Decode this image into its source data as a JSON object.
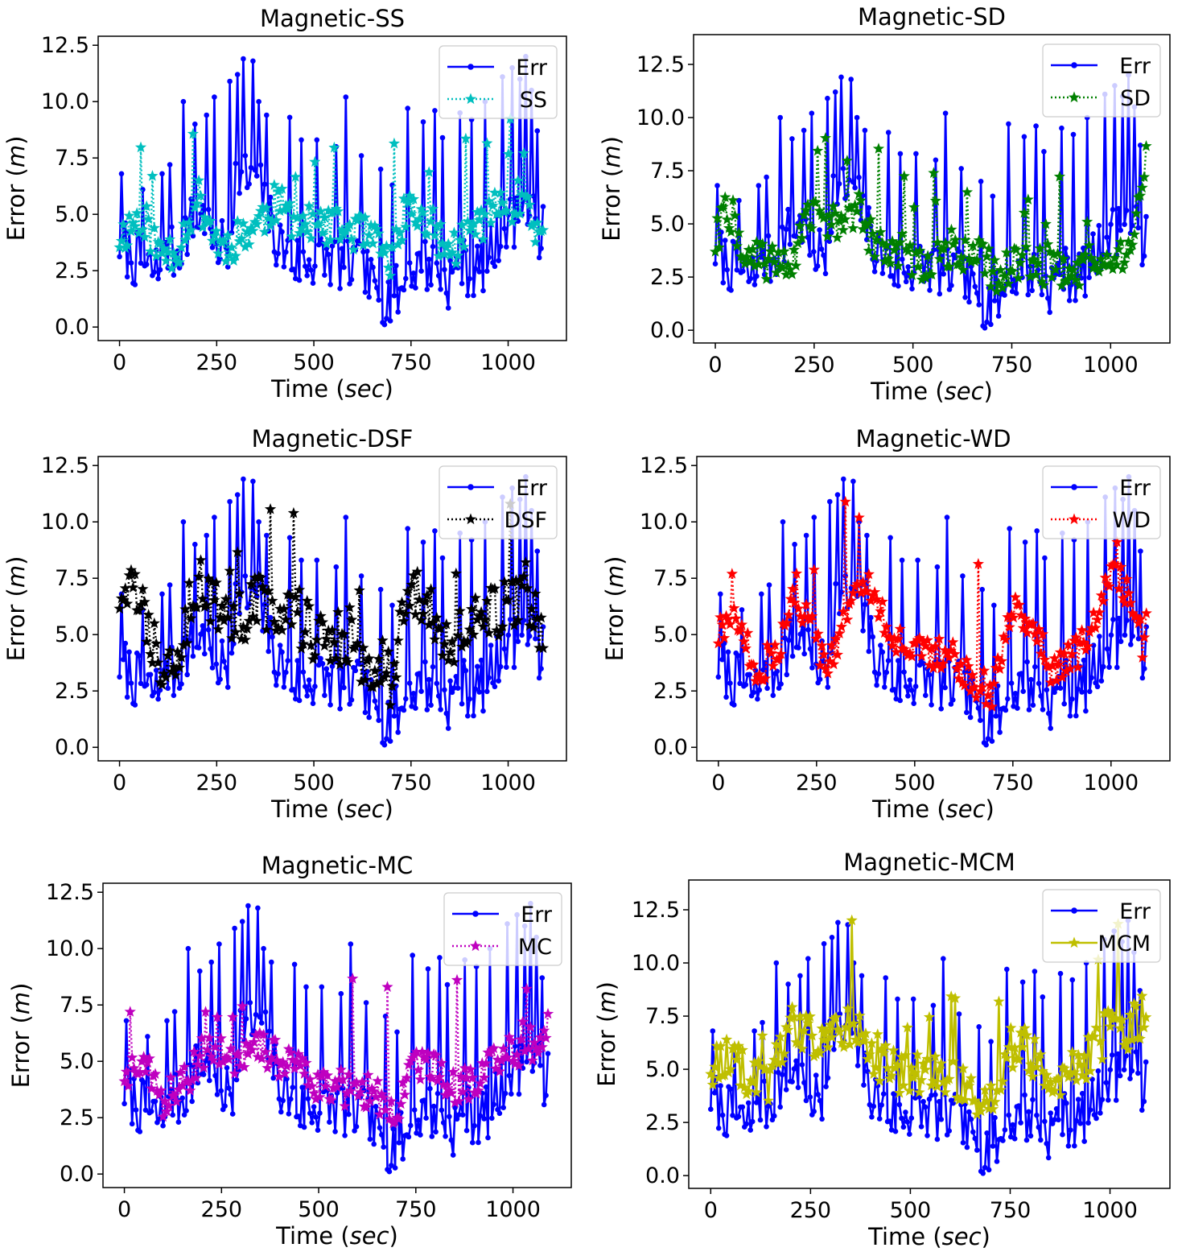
{
  "chart_data": [
    {
      "type": "line",
      "title": "Magnetic-SS",
      "xlabel": "Time (sec)",
      "ylabel": "Error (m)",
      "xlim": [
        -55,
        1150
      ],
      "ylim": [
        -0.6,
        12.9
      ],
      "xticks": [
        0,
        250,
        500,
        750,
        1000
      ],
      "yticks": [
        0.0,
        2.5,
        5.0,
        7.5,
        10.0,
        12.5
      ],
      "ytick_labels": [
        "0.0",
        "2.5",
        "5.0",
        "7.5",
        "10.0",
        "12.5"
      ],
      "legend": "top-right",
      "series": [
        {
          "name": "Err",
          "color": "#0000ff",
          "marker": "dot",
          "style": "solid"
        },
        {
          "name": "SS",
          "color": "#00bfbf",
          "marker": "star",
          "style": "dotted",
          "profile": [
            [
              0,
              4.0
            ],
            [
              60,
              5.0
            ],
            [
              100,
              3.3
            ],
            [
              150,
              3.5
            ],
            [
              200,
              5.8
            ],
            [
              260,
              3.5
            ],
            [
              300,
              3.9
            ],
            [
              350,
              4.5
            ],
            [
              400,
              5.5
            ],
            [
              450,
              4.8
            ],
            [
              500,
              4.4
            ],
            [
              600,
              4.3
            ],
            [
              650,
              3.8
            ],
            [
              700,
              2.9
            ],
            [
              750,
              5.3
            ],
            [
              800,
              4.5
            ],
            [
              850,
              3.3
            ],
            [
              900,
              4.2
            ],
            [
              950,
              5.0
            ],
            [
              1000,
              5.5
            ],
            [
              1050,
              5.7
            ],
            [
              1090,
              3.5
            ]
          ],
          "noise": 0.9,
          "seed": 11
        }
      ]
    },
    {
      "type": "line",
      "title": "Magnetic-SD",
      "xlabel": "Time (sec)",
      "ylabel": "Error (m)",
      "xlim": [
        -55,
        1150
      ],
      "ylim": [
        -0.6,
        13.9
      ],
      "xticks": [
        0,
        250,
        500,
        750,
        1000
      ],
      "yticks": [
        0.0,
        2.5,
        5.0,
        7.5,
        10.0,
        12.5
      ],
      "ytick_labels": [
        "0.0",
        "2.5",
        "5.0",
        "7.5",
        "10.0",
        "12.5"
      ],
      "legend": "top-right",
      "series": [
        {
          "name": "Err",
          "color": "#0000ff",
          "marker": "dot",
          "style": "solid"
        },
        {
          "name": "SD",
          "color": "#008000",
          "marker": "star",
          "style": "dotted",
          "profile": [
            [
              0,
              4.2
            ],
            [
              30,
              6.0
            ],
            [
              80,
              3.3
            ],
            [
              200,
              3.5
            ],
            [
              260,
              6.0
            ],
            [
              300,
              4.8
            ],
            [
              350,
              5.8
            ],
            [
              400,
              4.3
            ],
            [
              450,
              4.0
            ],
            [
              500,
              3.4
            ],
            [
              600,
              3.2
            ],
            [
              650,
              3.8
            ],
            [
              700,
              2.7
            ],
            [
              800,
              3.0
            ],
            [
              850,
              3.1
            ],
            [
              900,
              3.0
            ],
            [
              1000,
              3.0
            ],
            [
              1050,
              3.4
            ],
            [
              1080,
              7.0
            ],
            [
              1090,
              9.0
            ]
          ],
          "noise": 1.0,
          "seed": 22
        }
      ]
    },
    {
      "type": "line",
      "title": "Magnetic-DSF",
      "xlabel": "Time (sec)",
      "ylabel": "Error (m)",
      "xlim": [
        -55,
        1150
      ],
      "ylim": [
        -0.6,
        12.9
      ],
      "xticks": [
        0,
        250,
        500,
        750,
        1000
      ],
      "yticks": [
        0.0,
        2.5,
        5.0,
        7.5,
        10.0,
        12.5
      ],
      "ytick_labels": [
        "0.0",
        "2.5",
        "5.0",
        "7.5",
        "10.0",
        "12.5"
      ],
      "legend": "top-right",
      "series": [
        {
          "name": "Err",
          "color": "#0000ff",
          "marker": "dot",
          "style": "solid"
        },
        {
          "name": "DSF",
          "color": "#000000",
          "marker": "star",
          "style": "dotted",
          "profile": [
            [
              0,
              6.8
            ],
            [
              40,
              7.0
            ],
            [
              100,
              4.0
            ],
            [
              150,
              4.2
            ],
            [
              200,
              7.5
            ],
            [
              260,
              6.0
            ],
            [
              300,
              5.5
            ],
            [
              350,
              6.5
            ],
            [
              400,
              6.3
            ],
            [
              450,
              6.0
            ],
            [
              500,
              5.0
            ],
            [
              600,
              4.7
            ],
            [
              650,
              3.5
            ],
            [
              700,
              3.0
            ],
            [
              750,
              7.0
            ],
            [
              800,
              6.0
            ],
            [
              850,
              4.5
            ],
            [
              900,
              5.3
            ],
            [
              950,
              6.0
            ],
            [
              1000,
              6.3
            ],
            [
              1050,
              7.0
            ],
            [
              1090,
              4.5
            ]
          ],
          "noise": 1.3,
          "seed": 33
        }
      ]
    },
    {
      "type": "line",
      "title": "Magnetic-WD",
      "xlabel": "Time (sec)",
      "ylabel": "Error (m)",
      "xlim": [
        -55,
        1150
      ],
      "ylim": [
        -0.6,
        12.9
      ],
      "xticks": [
        0,
        250,
        500,
        750,
        1000
      ],
      "yticks": [
        0.0,
        2.5,
        5.0,
        7.5,
        10.0,
        12.5
      ],
      "ytick_labels": [
        "0.0",
        "2.5",
        "5.0",
        "7.5",
        "10.0",
        "12.5"
      ],
      "legend": "top-right",
      "series": [
        {
          "name": "Err",
          "color": "#0000ff",
          "marker": "dot",
          "style": "solid"
        },
        {
          "name": "WD",
          "color": "#ff0000",
          "marker": "star",
          "style": "dotted",
          "profile": [
            [
              0,
              5.0
            ],
            [
              50,
              5.5
            ],
            [
              100,
              3.5
            ],
            [
              150,
              4.0
            ],
            [
              200,
              7.0
            ],
            [
              250,
              4.5
            ],
            [
              280,
              3.3
            ],
            [
              330,
              5.8
            ],
            [
              370,
              7.5
            ],
            [
              400,
              6.5
            ],
            [
              450,
              4.8
            ],
            [
              500,
              4.3
            ],
            [
              600,
              4.0
            ],
            [
              650,
              3.0
            ],
            [
              700,
              2.5
            ],
            [
              750,
              6.5
            ],
            [
              800,
              5.5
            ],
            [
              850,
              3.5
            ],
            [
              900,
              4.0
            ],
            [
              950,
              5.0
            ],
            [
              1000,
              7.5
            ],
            [
              1050,
              7.0
            ],
            [
              1090,
              3.8
            ]
          ],
          "noise": 0.8,
          "seed": 44
        }
      ]
    },
    {
      "type": "line",
      "title": "Magnetic-MC",
      "xlabel": "Time (sec)",
      "ylabel": "Error (m)",
      "xlim": [
        -55,
        1150
      ],
      "ylim": [
        -0.6,
        12.9
      ],
      "xticks": [
        0,
        250,
        500,
        750,
        1000
      ],
      "yticks": [
        0.0,
        2.5,
        5.0,
        7.5,
        10.0,
        12.5
      ],
      "ytick_labels": [
        "0.0",
        "2.5",
        "5.0",
        "7.5",
        "10.0",
        "12.5"
      ],
      "legend": "top-right",
      "series": [
        {
          "name": "Err",
          "color": "#0000ff",
          "marker": "dot",
          "style": "solid"
        },
        {
          "name": "MC",
          "color": "#bf00bf",
          "marker": "star",
          "style": "dotted",
          "profile": [
            [
              0,
              4.5
            ],
            [
              50,
              5.2
            ],
            [
              100,
              3.3
            ],
            [
              150,
              3.8
            ],
            [
              200,
              5.5
            ],
            [
              250,
              5.3
            ],
            [
              300,
              4.8
            ],
            [
              350,
              5.7
            ],
            [
              400,
              5.0
            ],
            [
              450,
              4.5
            ],
            [
              500,
              4.0
            ],
            [
              600,
              3.7
            ],
            [
              650,
              3.5
            ],
            [
              700,
              2.8
            ],
            [
              750,
              5.0
            ],
            [
              800,
              4.8
            ],
            [
              850,
              3.8
            ],
            [
              900,
              4.2
            ],
            [
              950,
              5.0
            ],
            [
              1000,
              5.5
            ],
            [
              1050,
              5.8
            ],
            [
              1090,
              6.5
            ]
          ],
          "noise": 0.8,
          "seed": 55
        }
      ]
    },
    {
      "type": "line",
      "title": "Magnetic-MCM",
      "xlabel": "Time (sec)",
      "ylabel": "Error (m)",
      "xlim": [
        -55,
        1150
      ],
      "ylim": [
        -0.6,
        13.9
      ],
      "xticks": [
        0,
        250,
        500,
        750,
        1000
      ],
      "yticks": [
        0.0,
        2.5,
        5.0,
        7.5,
        10.0,
        12.5
      ],
      "ytick_labels": [
        "0.0",
        "2.5",
        "5.0",
        "7.5",
        "10.0",
        "12.5"
      ],
      "legend": "top-right",
      "series": [
        {
          "name": "Err",
          "color": "#0000ff",
          "marker": "dot",
          "style": "solid"
        },
        {
          "name": "MCM",
          "color": "#bfbf00",
          "marker": "star",
          "style": "solid",
          "profile": [
            [
              0,
              5.3
            ],
            [
              50,
              5.8
            ],
            [
              100,
              4.3
            ],
            [
              150,
              4.5
            ],
            [
              200,
              7.0
            ],
            [
              260,
              6.5
            ],
            [
              300,
              6.3
            ],
            [
              350,
              7.2
            ],
            [
              400,
              6.0
            ],
            [
              450,
              5.0
            ],
            [
              500,
              4.8
            ],
            [
              600,
              4.7
            ],
            [
              650,
              4.0
            ],
            [
              700,
              3.8
            ],
            [
              750,
              6.2
            ],
            [
              800,
              5.8
            ],
            [
              850,
              4.5
            ],
            [
              900,
              5.0
            ],
            [
              950,
              5.5
            ],
            [
              1000,
              7.0
            ],
            [
              1050,
              7.0
            ],
            [
              1090,
              7.5
            ]
          ],
          "noise": 1.1,
          "seed": 66
        }
      ]
    }
  ],
  "err_profile": [
    [
      0,
      3.8
    ],
    [
      40,
      3.0
    ],
    [
      70,
      2.5
    ],
    [
      100,
      2.5
    ],
    [
      150,
      3.5
    ],
    [
      180,
      4.5
    ],
    [
      210,
      5.0
    ],
    [
      240,
      3.8
    ],
    [
      280,
      3.5
    ],
    [
      300,
      7.0
    ],
    [
      330,
      6.5
    ],
    [
      350,
      7.0
    ],
    [
      370,
      5.5
    ],
    [
      400,
      4.0
    ],
    [
      440,
      3.0
    ],
    [
      470,
      2.8
    ],
    [
      500,
      3.0
    ],
    [
      540,
      3.0
    ],
    [
      580,
      2.8
    ],
    [
      620,
      2.5
    ],
    [
      660,
      1.6
    ],
    [
      690,
      1.3
    ],
    [
      720,
      1.5
    ],
    [
      750,
      2.5
    ],
    [
      800,
      2.8
    ],
    [
      840,
      2.0
    ],
    [
      880,
      2.7
    ],
    [
      920,
      2.5
    ],
    [
      960,
      3.5
    ],
    [
      1000,
      4.5
    ],
    [
      1040,
      5.0
    ],
    [
      1070,
      4.5
    ],
    [
      1090,
      4.2
    ]
  ],
  "err_spikes": [
    [
      5,
      6.8
    ],
    [
      60,
      6.1
    ],
    [
      110,
      6.8
    ],
    [
      130,
      7.2
    ],
    [
      165,
      10.0
    ],
    [
      195,
      9.0
    ],
    [
      225,
      9.4
    ],
    [
      245,
      10.2
    ],
    [
      285,
      10.9
    ],
    [
      305,
      11.2
    ],
    [
      320,
      11.9
    ],
    [
      345,
      11.8
    ],
    [
      360,
      10.0
    ],
    [
      380,
      9.4
    ],
    [
      440,
      9.3
    ],
    [
      470,
      8.3
    ],
    [
      510,
      8.3
    ],
    [
      555,
      8.0
    ],
    [
      580,
      10.2
    ],
    [
      620,
      7.6
    ],
    [
      670,
      7.0
    ],
    [
      700,
      6.3
    ],
    [
      740,
      9.7
    ],
    [
      780,
      9.1
    ],
    [
      810,
      9.6
    ],
    [
      830,
      8.4
    ],
    [
      875,
      9.5
    ],
    [
      905,
      9.2
    ],
    [
      940,
      10.0
    ],
    [
      985,
      11.1
    ],
    [
      1010,
      11.5
    ],
    [
      1030,
      11.0
    ],
    [
      1045,
      12.0
    ],
    [
      1060,
      10.5
    ],
    [
      1075,
      8.7
    ]
  ]
}
